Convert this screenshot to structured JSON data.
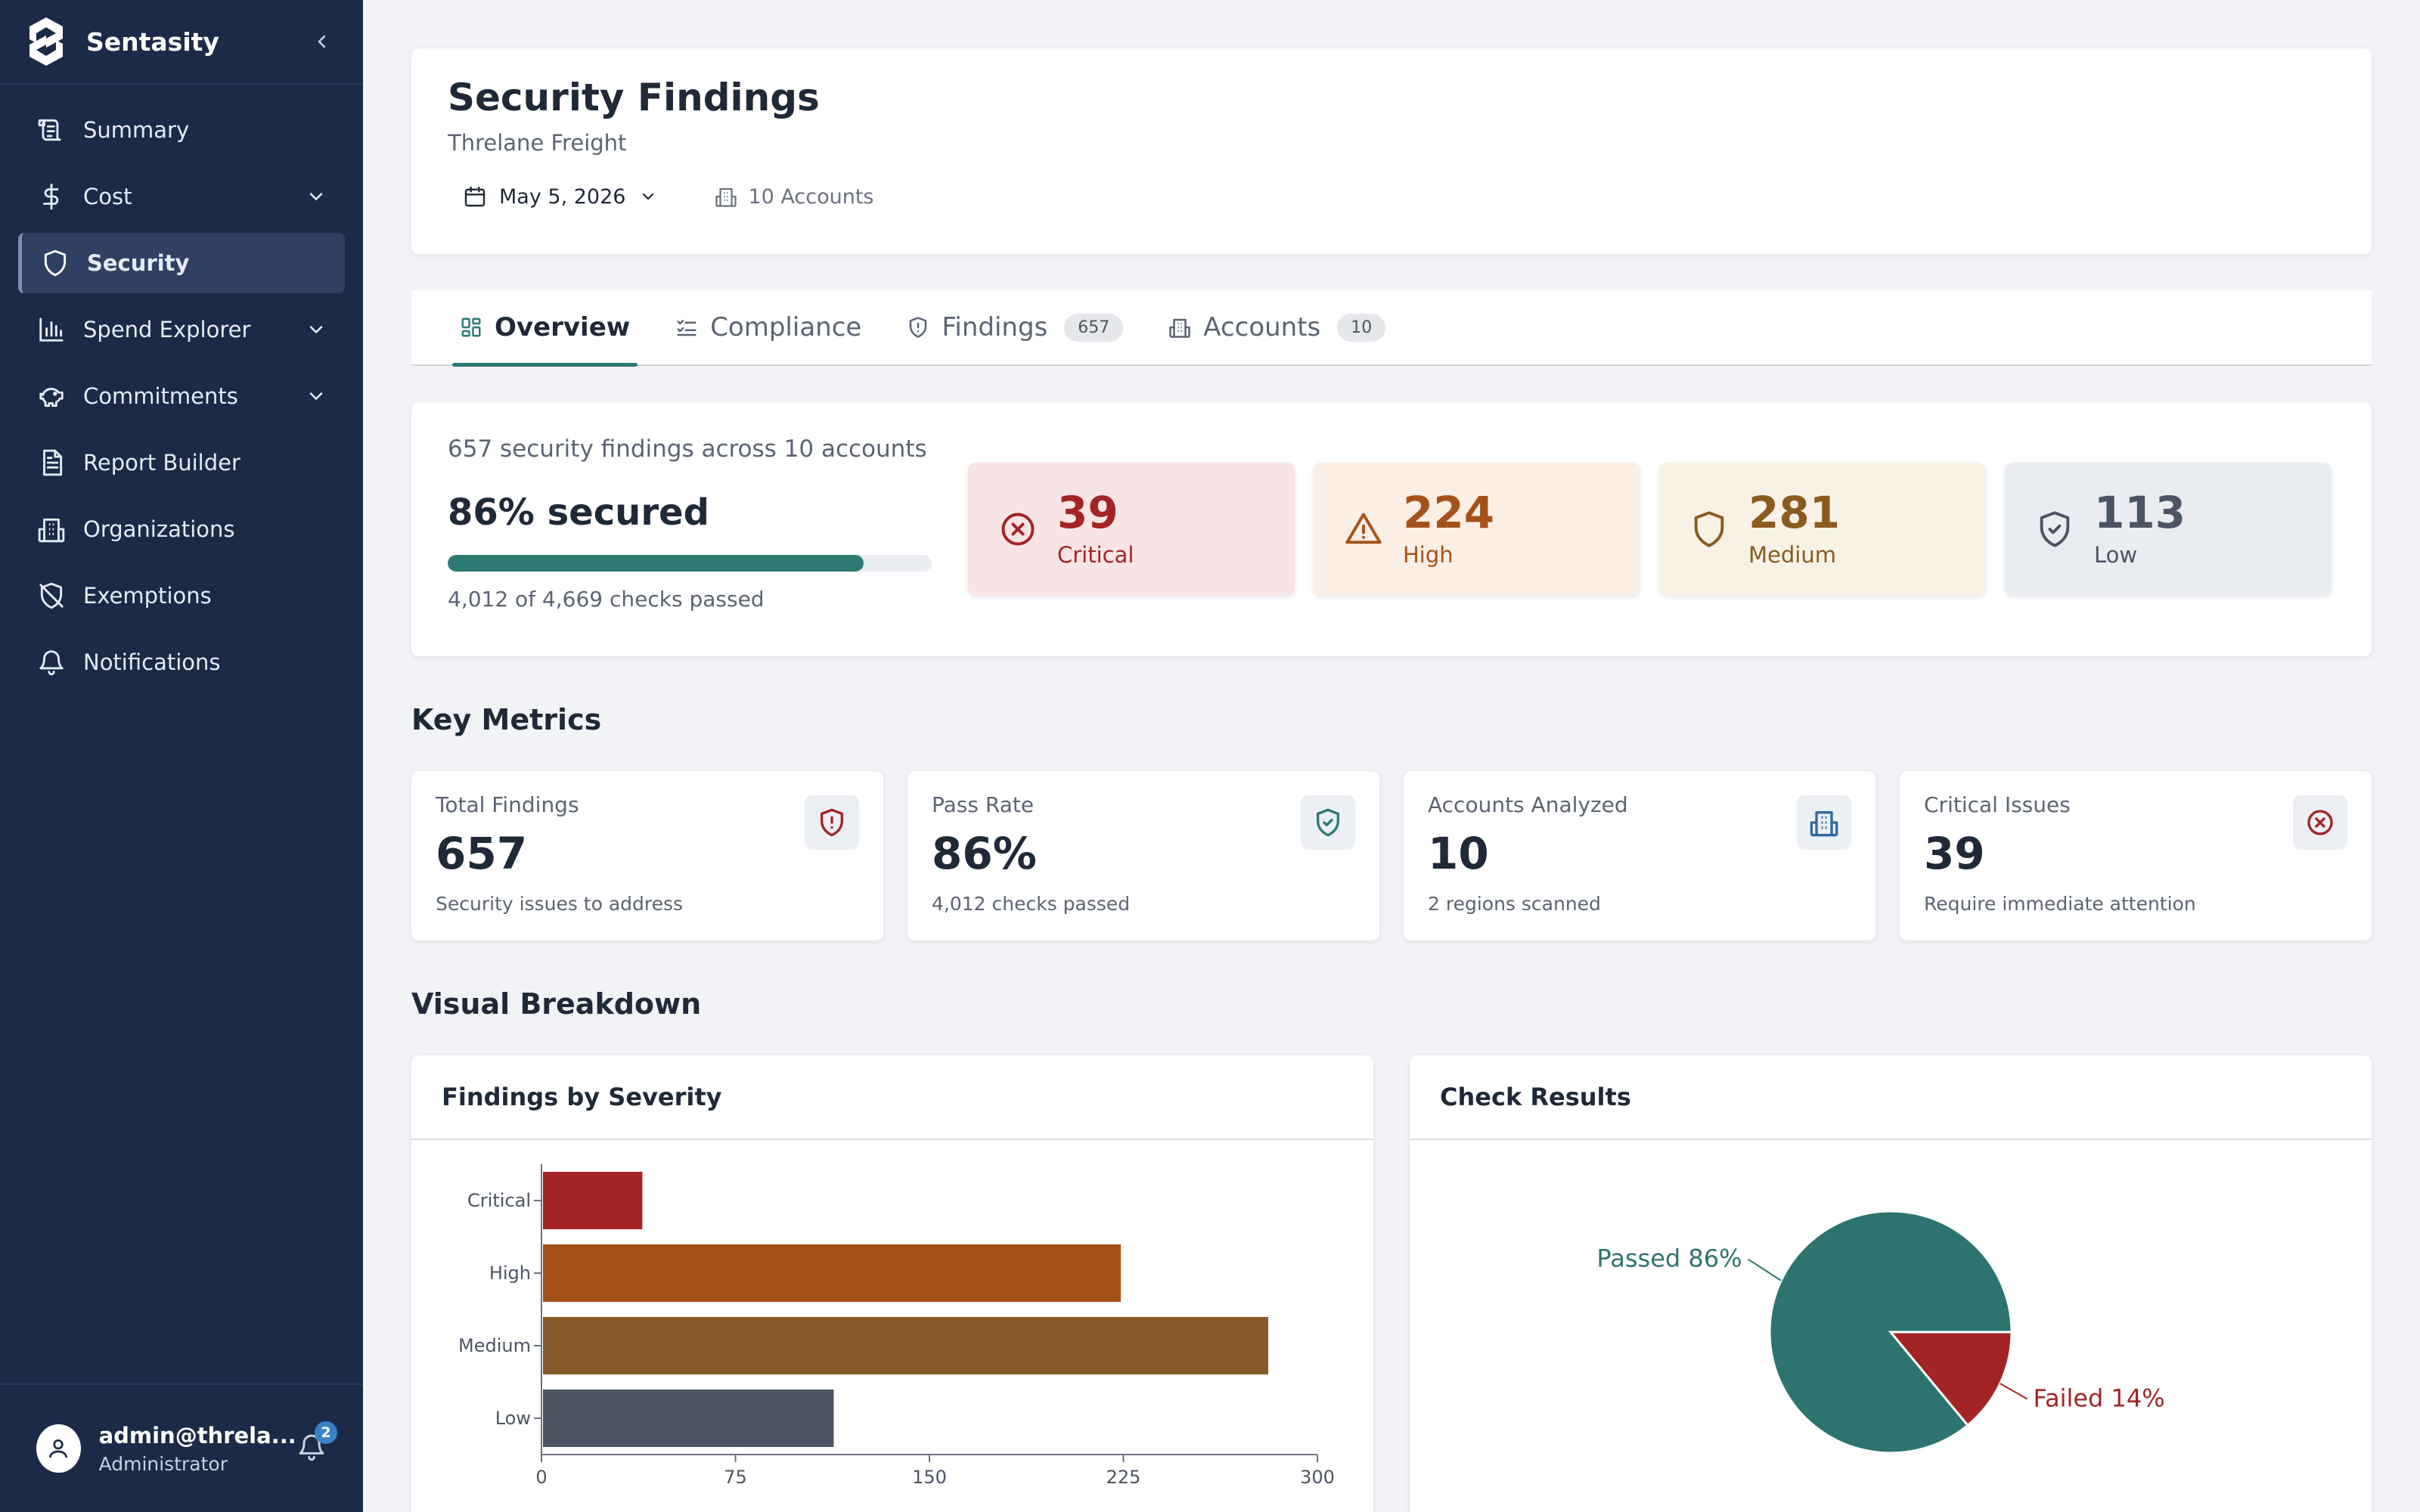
{
  "app": {
    "name": "Sentasity"
  },
  "sidebar": {
    "items": [
      {
        "label": "Summary",
        "icon": "document-icon",
        "has_chevron": false
      },
      {
        "label": "Cost",
        "icon": "dollar-icon",
        "has_chevron": true
      },
      {
        "label": "Security",
        "icon": "shield-icon",
        "has_chevron": false,
        "active": true
      },
      {
        "label": "Spend Explorer",
        "icon": "bar-chart-icon",
        "has_chevron": true
      },
      {
        "label": "Commitments",
        "icon": "piggy-bank-icon",
        "has_chevron": true
      },
      {
        "label": "Report Builder",
        "icon": "file-text-icon",
        "has_chevron": false
      },
      {
        "label": "Organizations",
        "icon": "building-icon",
        "has_chevron": false
      },
      {
        "label": "Exemptions",
        "icon": "shield-off-icon",
        "has_chevron": false
      },
      {
        "label": "Notifications",
        "icon": "bell-icon",
        "has_chevron": false
      }
    ],
    "user": {
      "email": "admin@threla...",
      "role": "Administrator",
      "notifications_count": "2"
    }
  },
  "header": {
    "title": "Security Findings",
    "subtitle": "Threlane Freight",
    "date": "May 5, 2026",
    "accounts": "10 Accounts"
  },
  "tabs": [
    {
      "label": "Overview",
      "count": "",
      "active": true
    },
    {
      "label": "Compliance",
      "count": ""
    },
    {
      "label": "Findings",
      "count": "657"
    },
    {
      "label": "Accounts",
      "count": "10"
    }
  ],
  "summary": {
    "description": "657 security findings across 10 accounts",
    "secured": "86% secured",
    "secured_fraction": 0.86,
    "checks": "4,012 of 4,669 checks passed",
    "severities": [
      {
        "count": "39",
        "label": "Critical",
        "color": "#a32424",
        "bg": "#f8e4e4"
      },
      {
        "count": "224",
        "label": "High",
        "color": "#a5521a",
        "bg": "#fbeee4"
      },
      {
        "count": "281",
        "label": "Medium",
        "color": "#8a5a1f",
        "bg": "#f8f1e6"
      },
      {
        "count": "113",
        "label": "Low",
        "color": "#4b5563",
        "bg": "#e9ecf1"
      }
    ]
  },
  "key_metrics": {
    "title": "Key Metrics",
    "cards": [
      {
        "label": "Total Findings",
        "value": "657",
        "sub": "Security issues to address",
        "icon": "shield-alert-icon"
      },
      {
        "label": "Pass Rate",
        "value": "86%",
        "sub": "4,012 checks passed",
        "icon": "shield-check-icon"
      },
      {
        "label": "Accounts Analyzed",
        "value": "10",
        "sub": "2 regions scanned",
        "icon": "building-icon"
      },
      {
        "label": "Critical Issues",
        "value": "39",
        "sub": "Require immediate attention",
        "icon": "x-circle-icon"
      }
    ]
  },
  "visual": {
    "title": "Visual Breakdown",
    "severity_chart_title": "Findings by Severity",
    "check_chart_title": "Check Results"
  },
  "chart_data": [
    {
      "type": "bar",
      "orientation": "horizontal",
      "title": "Findings by Severity",
      "categories": [
        "Critical",
        "High",
        "Medium",
        "Low"
      ],
      "values": [
        39,
        224,
        281,
        113
      ],
      "colors": [
        "#a32424",
        "#a5521a",
        "#87592a",
        "#4b5563"
      ],
      "xlim": [
        0,
        300
      ],
      "xticks": [
        0,
        75,
        150,
        225,
        300
      ]
    },
    {
      "type": "pie",
      "title": "Check Results",
      "slices": [
        {
          "name": "Passed",
          "value": 86,
          "label": "Passed 86%",
          "color": "#2d7470"
        },
        {
          "name": "Failed",
          "value": 14,
          "label": "Failed 14%",
          "color": "#a32424"
        }
      ]
    }
  ]
}
